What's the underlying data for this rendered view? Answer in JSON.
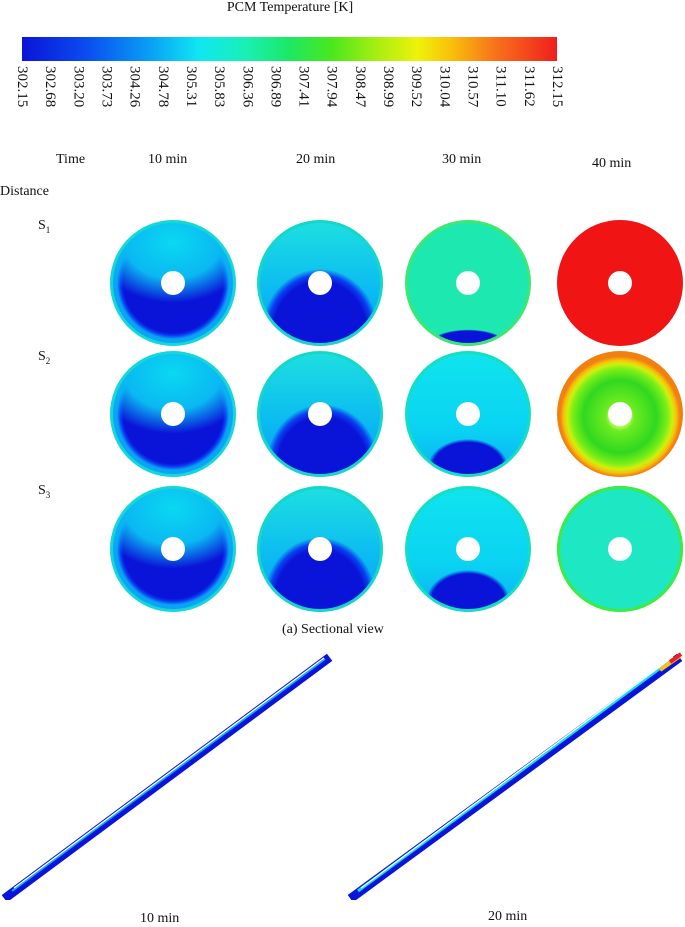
{
  "colorbar": {
    "title": "PCM Temperature [K]",
    "ticks": [
      "302.15",
      "302.68",
      "303.20",
      "303.73",
      "304.26",
      "304.78",
      "305.31",
      "305.83",
      "306.36",
      "306.89",
      "307.41",
      "307.94",
      "308.47",
      "308.99",
      "309.52",
      "310.04",
      "310.57",
      "311.10",
      "311.62",
      "312.15"
    ],
    "min": 302.15,
    "max": 312.15,
    "colors": [
      "#0a14d8",
      "#0aa0f4",
      "#10e6f2",
      "#1ce864",
      "#eef20a",
      "#f01e1e"
    ]
  },
  "header": {
    "time_label": "Time",
    "distance_label": "Distance",
    "times": [
      "10 min",
      "20 min",
      "30 min",
      "40 min"
    ]
  },
  "rows": [
    {
      "label": "S",
      "sub": "1"
    },
    {
      "label": "S",
      "sub": "2"
    },
    {
      "label": "S",
      "sub": "3"
    }
  ],
  "sectional_caption": "(a) Sectional view",
  "longitudinal": {
    "captions": [
      "10 min",
      "20 min"
    ]
  }
}
